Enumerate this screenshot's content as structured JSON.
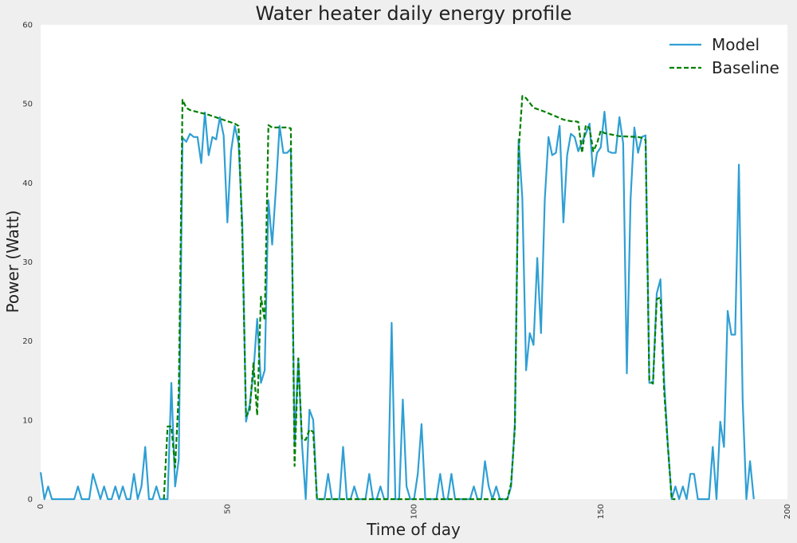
{
  "chart_data": {
    "type": "line",
    "title": "Water heater daily energy profile",
    "xlabel": "Time of day",
    "ylabel": "Power (Watt)",
    "xlim": [
      0,
      200
    ],
    "ylim": [
      0,
      60
    ],
    "xticks": [
      "0",
      "50",
      "100",
      "150",
      "200"
    ],
    "yticks": [
      "0",
      "10",
      "20",
      "30",
      "40",
      "50",
      "60"
    ],
    "grid": false,
    "legend_position": "top-right",
    "colors": {
      "model": "#2f9fd4",
      "baseline": "#008000",
      "plot_bg": "#ffffff",
      "fig_bg": "#efefef"
    },
    "series": [
      {
        "name": "Model",
        "style": "solid",
        "points": [
          [
            0,
            3.4
          ],
          [
            1,
            0
          ],
          [
            2,
            1.6
          ],
          [
            3,
            0
          ],
          [
            4,
            0
          ],
          [
            5,
            0
          ],
          [
            6,
            0
          ],
          [
            7,
            0
          ],
          [
            8,
            0
          ],
          [
            9,
            0
          ],
          [
            10,
            1.6
          ],
          [
            11,
            0
          ],
          [
            12,
            0
          ],
          [
            13,
            0
          ],
          [
            14,
            3.2
          ],
          [
            15,
            1.6
          ],
          [
            16,
            0
          ],
          [
            17,
            1.6
          ],
          [
            18,
            0
          ],
          [
            19,
            0
          ],
          [
            20,
            1.6
          ],
          [
            21,
            0
          ],
          [
            22,
            1.6
          ],
          [
            23,
            0
          ],
          [
            24,
            0
          ],
          [
            25,
            3.2
          ],
          [
            26,
            0
          ],
          [
            27,
            1.6
          ],
          [
            28,
            6.6
          ],
          [
            29,
            0
          ],
          [
            30,
            0
          ],
          [
            31,
            1.6
          ],
          [
            32,
            0
          ],
          [
            33,
            0
          ],
          [
            34,
            0
          ],
          [
            35,
            14.7
          ],
          [
            36,
            1.6
          ],
          [
            37,
            5
          ],
          [
            38,
            45.7
          ],
          [
            39,
            45.2
          ],
          [
            40,
            46.2
          ],
          [
            41,
            45.8
          ],
          [
            42,
            45.8
          ],
          [
            43,
            42.5
          ],
          [
            44,
            48.9
          ],
          [
            45,
            43.5
          ],
          [
            46,
            45.8
          ],
          [
            47,
            45.5
          ],
          [
            48,
            48.3
          ],
          [
            49,
            46
          ],
          [
            50,
            35
          ],
          [
            51,
            44
          ],
          [
            52,
            47.2
          ],
          [
            53,
            45
          ],
          [
            54,
            35
          ],
          [
            55,
            9.8
          ],
          [
            56,
            12
          ],
          [
            57,
            16
          ],
          [
            58,
            22.8
          ],
          [
            59,
            14.7
          ],
          [
            60,
            16.3
          ],
          [
            61,
            37.8
          ],
          [
            62,
            32.2
          ],
          [
            63,
            39.3
          ],
          [
            64,
            47.2
          ],
          [
            65,
            43.8
          ],
          [
            66,
            43.8
          ],
          [
            67,
            44.3
          ],
          [
            68,
            7
          ],
          [
            69,
            17.8
          ],
          [
            70,
            7
          ],
          [
            71,
            0
          ],
          [
            72,
            11.3
          ],
          [
            73,
            10
          ],
          [
            74,
            0
          ],
          [
            75,
            0
          ],
          [
            76,
            0
          ],
          [
            77,
            3.2
          ],
          [
            78,
            0
          ],
          [
            79,
            0
          ],
          [
            80,
            0
          ],
          [
            81,
            6.6
          ],
          [
            82,
            0
          ],
          [
            83,
            0
          ],
          [
            84,
            1.6
          ],
          [
            85,
            0
          ],
          [
            86,
            0
          ],
          [
            87,
            0
          ],
          [
            88,
            3.2
          ],
          [
            89,
            0
          ],
          [
            90,
            0
          ],
          [
            91,
            1.6
          ],
          [
            92,
            0
          ],
          [
            93,
            0
          ],
          [
            94,
            22.3
          ],
          [
            95,
            0
          ],
          [
            96,
            0
          ],
          [
            97,
            12.6
          ],
          [
            98,
            1.6
          ],
          [
            99,
            0
          ],
          [
            100,
            0
          ],
          [
            101,
            3.2
          ],
          [
            102,
            9.5
          ],
          [
            103,
            0
          ],
          [
            104,
            0
          ],
          [
            105,
            0
          ],
          [
            106,
            0
          ],
          [
            107,
            3.2
          ],
          [
            108,
            0
          ],
          [
            109,
            0
          ],
          [
            110,
            3.2
          ],
          [
            111,
            0
          ],
          [
            112,
            0
          ],
          [
            113,
            0
          ],
          [
            114,
            0
          ],
          [
            115,
            0
          ],
          [
            116,
            1.6
          ],
          [
            117,
            0
          ],
          [
            118,
            0
          ],
          [
            119,
            4.8
          ],
          [
            120,
            1.6
          ],
          [
            121,
            0
          ],
          [
            122,
            1.6
          ],
          [
            123,
            0
          ],
          [
            124,
            0
          ],
          [
            125,
            0
          ],
          [
            126,
            1.6
          ],
          [
            127,
            9.5
          ],
          [
            128,
            45.5
          ],
          [
            129,
            38
          ],
          [
            130,
            16.3
          ],
          [
            131,
            21
          ],
          [
            132,
            19.5
          ],
          [
            133,
            30.5
          ],
          [
            134,
            21
          ],
          [
            135,
            37.8
          ],
          [
            136,
            45.8
          ],
          [
            137,
            43.5
          ],
          [
            138,
            43.8
          ],
          [
            139,
            47.2
          ],
          [
            140,
            35
          ],
          [
            141,
            43.5
          ],
          [
            142,
            46.2
          ],
          [
            143,
            45.8
          ],
          [
            144,
            44
          ],
          [
            145,
            45.2
          ],
          [
            146,
            46.2
          ],
          [
            147,
            47.5
          ],
          [
            148,
            40.8
          ],
          [
            149,
            43.8
          ],
          [
            150,
            44.5
          ],
          [
            151,
            49
          ],
          [
            152,
            44
          ],
          [
            153,
            43.8
          ],
          [
            154,
            43.8
          ],
          [
            155,
            48.3
          ],
          [
            156,
            45
          ],
          [
            157,
            15.9
          ],
          [
            158,
            38
          ],
          [
            159,
            47
          ],
          [
            160,
            43.8
          ],
          [
            161,
            45.8
          ],
          [
            162,
            46
          ],
          [
            163,
            14.7
          ],
          [
            164,
            14.7
          ],
          [
            165,
            26
          ],
          [
            166,
            27.8
          ],
          [
            167,
            14.7
          ],
          [
            168,
            6.6
          ],
          [
            169,
            0
          ],
          [
            170,
            1.6
          ],
          [
            171,
            0
          ],
          [
            172,
            1.6
          ],
          [
            173,
            0
          ],
          [
            174,
            3.2
          ],
          [
            175,
            3.2
          ],
          [
            176,
            0
          ],
          [
            177,
            0
          ],
          [
            178,
            0
          ],
          [
            179,
            0
          ],
          [
            180,
            6.6
          ],
          [
            181,
            0
          ],
          [
            182,
            9.8
          ],
          [
            183,
            6.6
          ],
          [
            184,
            23.8
          ],
          [
            185,
            20.8
          ],
          [
            186,
            20.8
          ],
          [
            187,
            42.3
          ],
          [
            188,
            12.6
          ],
          [
            189,
            0
          ],
          [
            190,
            4.8
          ],
          [
            191,
            0
          ]
        ]
      },
      {
        "name": "Baseline",
        "style": "dashed",
        "points": [
          [
            33,
            0
          ],
          [
            34,
            9.2
          ],
          [
            35,
            9.2
          ],
          [
            36,
            4
          ],
          [
            37,
            13.5
          ],
          [
            38,
            50.5
          ],
          [
            39,
            49.5
          ],
          [
            40,
            49.2
          ],
          [
            45,
            48.6
          ],
          [
            50,
            47.8
          ],
          [
            52,
            47.5
          ],
          [
            53,
            47.2
          ],
          [
            54,
            33.3
          ],
          [
            55,
            10.5
          ],
          [
            56,
            11.3
          ],
          [
            57,
            17.2
          ],
          [
            58,
            10.6
          ],
          [
            59,
            25.6
          ],
          [
            60,
            22.6
          ],
          [
            61,
            47.3
          ],
          [
            62,
            47
          ],
          [
            66,
            47
          ],
          [
            67,
            46.9
          ],
          [
            68,
            4.2
          ],
          [
            69,
            17.8
          ],
          [
            70,
            7.5
          ],
          [
            71,
            7.5
          ],
          [
            72,
            8.8
          ],
          [
            73,
            8.5
          ],
          [
            74,
            0
          ],
          [
            125,
            0
          ],
          [
            126,
            2
          ],
          [
            127,
            9
          ],
          [
            128,
            44
          ],
          [
            129,
            51
          ],
          [
            130,
            50.7
          ],
          [
            132,
            49.5
          ],
          [
            135,
            49
          ],
          [
            140,
            48
          ],
          [
            142,
            47.8
          ],
          [
            143,
            47.8
          ],
          [
            144,
            47.7
          ],
          [
            145,
            43.8
          ],
          [
            146,
            47.3
          ],
          [
            147,
            46.9
          ],
          [
            148,
            44
          ],
          [
            149,
            45
          ],
          [
            150,
            46.6
          ],
          [
            151,
            46.3
          ],
          [
            155,
            45.9
          ],
          [
            160,
            45.8
          ],
          [
            161,
            45.7
          ],
          [
            162,
            45.4
          ],
          [
            163,
            15
          ],
          [
            164,
            14.6
          ],
          [
            165,
            25.3
          ],
          [
            166,
            25.5
          ],
          [
            167,
            13.5
          ],
          [
            168,
            6.5
          ],
          [
            169,
            0
          ],
          [
            170,
            0
          ]
        ]
      }
    ]
  }
}
